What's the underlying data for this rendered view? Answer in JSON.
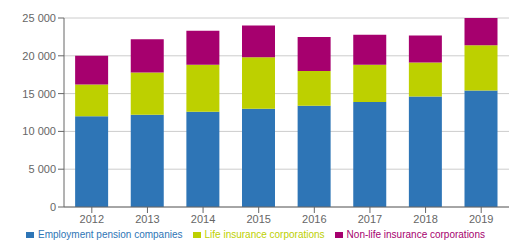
{
  "chart_data": {
    "type": "bar",
    "stacked": true,
    "grid": true,
    "legend": "bottom",
    "categories": [
      "2012",
      "2013",
      "2014",
      "2015",
      "2016",
      "2017",
      "2018",
      "2019"
    ],
    "series": [
      {
        "name": "Employment pension companies",
        "color": "#2e75b6",
        "values": [
          12000,
          12200,
          12600,
          13000,
          13400,
          13900,
          14600,
          15400
        ]
      },
      {
        "name": "Life insurance corporations",
        "color": "#bdd000",
        "values": [
          4200,
          5600,
          6200,
          6800,
          4600,
          4900,
          4500,
          6000
        ]
      },
      {
        "name": "Non-life insurance corporations",
        "color": "#a6006e",
        "values": [
          3800,
          4400,
          4500,
          4200,
          4500,
          4000,
          3600,
          3600
        ]
      }
    ],
    "ylim": [
      0,
      25000
    ],
    "yticks": [
      0,
      {
        "value": 5000,
        "label": "5 000"
      },
      {
        "value": 10000,
        "label": "10 000"
      },
      {
        "value": 15000,
        "label": "15 000"
      },
      {
        "value": 20000,
        "label": "20 000"
      },
      {
        "value": 25000,
        "label": "25 000"
      }
    ]
  }
}
